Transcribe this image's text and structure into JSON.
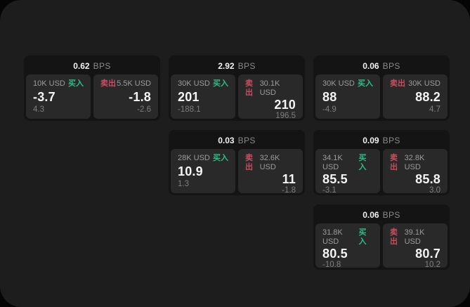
{
  "labels": {
    "bps_unit": "BPS",
    "buy": "买入",
    "sell": "卖出"
  },
  "colors": {
    "buy": "#2ebd85",
    "sell": "#c84e5f",
    "window_bg": "#1d1d1e",
    "card_bg": "#141414",
    "panel_bg": "#29292a"
  },
  "cards": [
    {
      "bps": "0.62",
      "buy": {
        "amount": "10K USD",
        "price": "-3.7",
        "change": "4.3"
      },
      "sell": {
        "amount": "5.5K USD",
        "price": "-1.8",
        "change": "-2.6"
      }
    },
    {
      "bps": "2.92",
      "buy": {
        "amount": "30K USD",
        "price": "201",
        "change": "-188.1"
      },
      "sell": {
        "amount": "30.1K USD",
        "price": "210",
        "change": "196.5"
      }
    },
    {
      "bps": "0.06",
      "buy": {
        "amount": "30K USD",
        "price": "88",
        "change": "-4.9"
      },
      "sell": {
        "amount": "30K USD",
        "price": "88.2",
        "change": "4.7"
      }
    },
    {
      "bps": "0.03",
      "buy": {
        "amount": "28K USD",
        "price": "10.9",
        "change": "1.3"
      },
      "sell": {
        "amount": "32.6K USD",
        "price": "11",
        "change": "-1.8"
      }
    },
    {
      "bps": "0.09",
      "buy": {
        "amount": "34.1K USD",
        "price": "85.5",
        "change": "-3.1"
      },
      "sell": {
        "amount": "32.8K USD",
        "price": "85.8",
        "change": "3.0"
      }
    },
    {
      "bps": "0.06",
      "buy": {
        "amount": "31.8K USD",
        "price": "80.5",
        "change": "-10.8"
      },
      "sell": {
        "amount": "39.1K USD",
        "price": "80.7",
        "change": "10.2"
      }
    }
  ]
}
